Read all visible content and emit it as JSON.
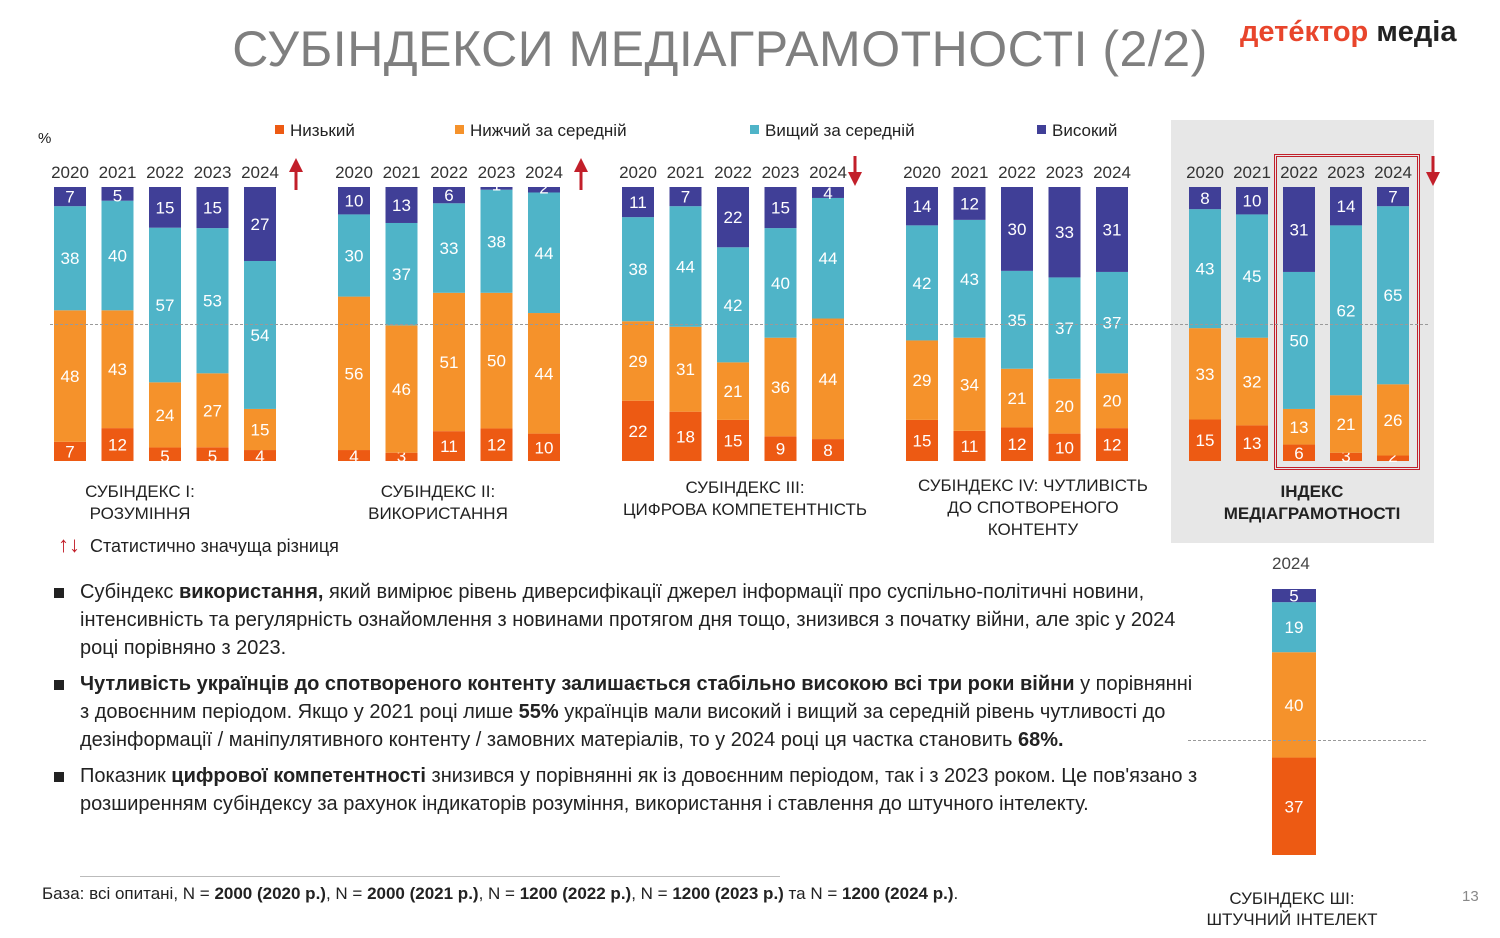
{
  "header": {
    "title": "СУБІНДЕКСИ МЕДІАГРАМОТНОСТІ (2/2)",
    "logo_part1": "детéктор",
    "logo_part2": "медіа"
  },
  "percent_label": "%",
  "legend": [
    {
      "label": "Низький",
      "color": "#ed5a13"
    },
    {
      "label": "Нижчий за середній",
      "color": "#f5922b"
    },
    {
      "label": "Вищий за середній",
      "color": "#4fb4c8"
    },
    {
      "label": "Високий",
      "color": "#403f97"
    }
  ],
  "significance_legend": "Статистично значуща різниця",
  "chart_data": [
    {
      "type": "bar",
      "stacked": true,
      "title": "СУБІНДЕКС І: РОЗУМІННЯ",
      "categories": [
        "2020",
        "2021",
        "2022",
        "2023",
        "2024"
      ],
      "series": [
        {
          "name": "Низький",
          "values": [
            7,
            12,
            5,
            5,
            4
          ]
        },
        {
          "name": "Нижчий за середній",
          "values": [
            48,
            43,
            24,
            27,
            15
          ]
        },
        {
          "name": "Вищий за середній",
          "values": [
            38,
            40,
            57,
            53,
            54
          ]
        },
        {
          "name": "Високий",
          "values": [
            7,
            5,
            15,
            15,
            27
          ]
        }
      ],
      "significance": "up"
    },
    {
      "type": "bar",
      "stacked": true,
      "title": "СУБІНДЕКС ІІ: ВИКОРИСТАННЯ",
      "categories": [
        "2020",
        "2021",
        "2022",
        "2023",
        "2024"
      ],
      "series": [
        {
          "name": "Низький",
          "values": [
            4,
            3,
            11,
            12,
            10
          ]
        },
        {
          "name": "Нижчий за середній",
          "values": [
            56,
            46,
            51,
            50,
            44
          ]
        },
        {
          "name": "Вищий за середній",
          "values": [
            30,
            37,
            33,
            38,
            44
          ]
        },
        {
          "name": "Високий",
          "values": [
            10,
            13,
            6,
            1,
            2
          ]
        }
      ],
      "significance": "up"
    },
    {
      "type": "bar",
      "stacked": true,
      "title": "СУБІНДЕКС ІІІ: ЦИФРОВА КОМПЕТЕНТНІСТЬ",
      "categories": [
        "2020",
        "2021",
        "2022",
        "2023",
        "2024"
      ],
      "series": [
        {
          "name": "Низький",
          "values": [
            22,
            18,
            15,
            9,
            8
          ]
        },
        {
          "name": "Нижчий за середній",
          "values": [
            29,
            31,
            21,
            36,
            44
          ]
        },
        {
          "name": "Вищий за середній",
          "values": [
            38,
            44,
            42,
            40,
            44
          ]
        },
        {
          "name": "Високий",
          "values": [
            11,
            7,
            22,
            15,
            4
          ]
        }
      ],
      "significance": "down"
    },
    {
      "type": "bar",
      "stacked": true,
      "title": "СУБІНДЕКС ІV: ЧУТЛИВІСТЬ ДО СПОТВОРЕНОГО КОНТЕНТУ",
      "categories": [
        "2020",
        "2021",
        "2022",
        "2023",
        "2024"
      ],
      "series": [
        {
          "name": "Низький",
          "values": [
            15,
            11,
            12,
            10,
            12
          ]
        },
        {
          "name": "Нижчий за середній",
          "values": [
            29,
            34,
            21,
            20,
            20
          ]
        },
        {
          "name": "Вищий за середній",
          "values": [
            42,
            43,
            35,
            37,
            37
          ]
        },
        {
          "name": "Високий",
          "values": [
            14,
            12,
            30,
            33,
            31
          ]
        }
      ],
      "significance": ""
    },
    {
      "type": "bar",
      "stacked": true,
      "title": "ІНДЕКС МЕДІАГРАМОТНОСТІ",
      "categories": [
        "2020",
        "2021",
        "2022",
        "2023",
        "2024"
      ],
      "series": [
        {
          "name": "Низький",
          "values": [
            15,
            13,
            6,
            3,
            2
          ]
        },
        {
          "name": "Нижчий за середній",
          "values": [
            33,
            32,
            13,
            21,
            26
          ]
        },
        {
          "name": "Вищий за середній",
          "values": [
            43,
            45,
            50,
            62,
            65
          ]
        },
        {
          "name": "Високий",
          "values": [
            8,
            10,
            31,
            14,
            7
          ]
        }
      ],
      "significance": "down"
    },
    {
      "type": "bar",
      "stacked": true,
      "title": "СУБІНДЕКС ШІ: ШТУЧНИЙ ІНТЕЛЕКТ",
      "categories": [
        "2024"
      ],
      "series": [
        {
          "name": "Низький",
          "values": [
            37
          ]
        },
        {
          "name": "Нижчий за середній",
          "values": [
            40
          ]
        },
        {
          "name": "Вищий за середній",
          "values": [
            19
          ]
        },
        {
          "name": "Високий",
          "values": [
            5
          ]
        }
      ],
      "significance": ""
    }
  ],
  "group_titles": [
    [
      "СУБІНДЕКС І:",
      "РОЗУМІННЯ"
    ],
    [
      "СУБІНДЕКС ІІ:",
      "ВИКОРИСТАННЯ"
    ],
    [
      "СУБІНДЕКС ІІІ:",
      "ЦИФРОВА КОМПЕТЕНТНІСТЬ"
    ],
    [
      "СУБІНДЕКС ІV: ЧУТЛИВІСТЬ",
      "ДО СПОТВОРЕНОГО",
      "КОНТЕНТУ"
    ],
    [
      "ІНДЕКС",
      "МЕДІАГРАМОТНОСТІ"
    ]
  ],
  "ai_year": "2024",
  "ai_title": [
    "СУБІНДЕКС ШІ:",
    "ШТУЧНИЙ ІНТЕЛЕКТ"
  ],
  "bullets": {
    "b1_pre": "Субіндекс ",
    "b1_bold": "використання,",
    "b1_post": " який вимірює рівень диверсифікації джерел інформації про суспільно-політичні новини, інтенсивність та регулярність ознайомлення з новинами протягом дня тощо, знизився з початку війни, але зріс у 2024 році порівняно з 2023.",
    "b2_bold": "Чутливість українців  до спотвореного контенту залишається стабільно високою всі три роки війни",
    "b2_mid": " у порівнянні з довоєнним періодом. Якщо у 2021 році лише ",
    "b2_bold2": "55%",
    "b2_mid2": " українців мали високий і вищий за середній рівень чутливості до дезінформації / маніпулятивного контенту / замовних матеріалів, то у 2024 році ця частка становить ",
    "b2_bold3": "68%.",
    "b3_pre": "Показник ",
    "b3_bold": "цифрової компетентності",
    "b3_post": " знизився у порівнянні як із довоєнним періодом, так і з 2023 роком. Це пов'язано з розширенням субіндексу за рахунок  індикаторів розуміння, використання і ставлення до штучного інтелекту."
  },
  "base": {
    "p1": "База: всі опитані, N = ",
    "n1": "2000 (2020 р.)",
    "p2": ", N = ",
    "n2": "2000 (2021 р.)",
    "p3": ", N = ",
    "n3": "1200 (2022 р.)",
    "p4": ", N = ",
    "n4": "1200 (2023 р.)",
    "p5": " та N = ",
    "n5": "1200 (2024 р.)",
    "p6": "."
  },
  "page_number": "13"
}
